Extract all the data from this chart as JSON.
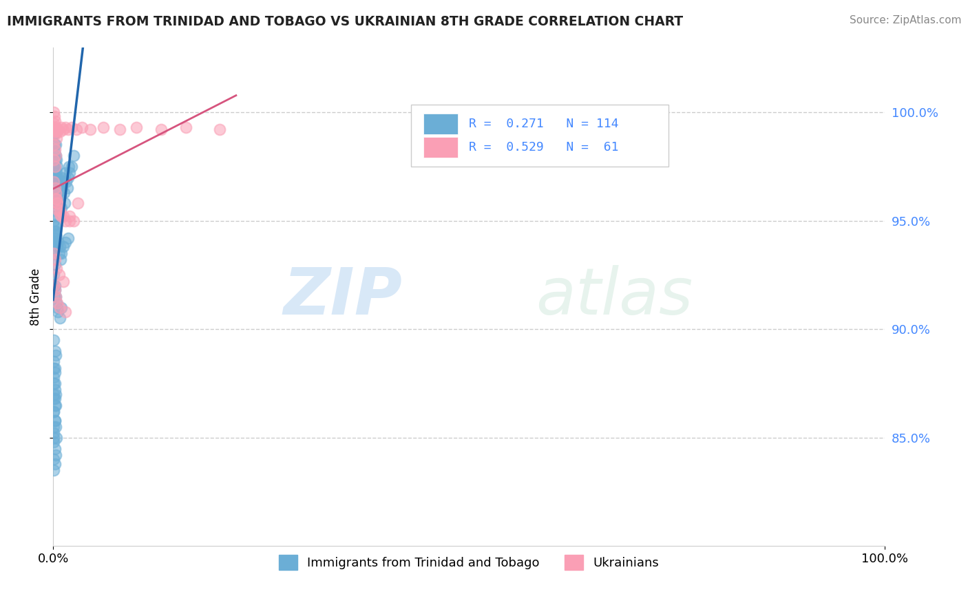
{
  "title": "IMMIGRANTS FROM TRINIDAD AND TOBAGO VS UKRAINIAN 8TH GRADE CORRELATION CHART",
  "source": "Source: ZipAtlas.com",
  "ylabel": "8th Grade",
  "xlim": [
    0.0,
    1.0
  ],
  "ylim": [
    0.8,
    1.03
  ],
  "yticks": [
    0.85,
    0.9,
    0.95,
    1.0
  ],
  "ytick_labels": [
    "85.0%",
    "90.0%",
    "95.0%",
    "100.0%"
  ],
  "blue_color": "#6baed6",
  "pink_color": "#fa9fb5",
  "blue_line_color": "#2166ac",
  "pink_line_color": "#d6547e",
  "watermark_zip": "ZIP",
  "watermark_atlas": "atlas",
  "blue_x": [
    0.0005,
    0.001,
    0.0015,
    0.001,
    0.0008,
    0.0012,
    0.0018,
    0.002,
    0.0022,
    0.0025,
    0.003,
    0.0032,
    0.0028,
    0.0035,
    0.004,
    0.0042,
    0.0038,
    0.005,
    0.0052,
    0.0048,
    0.006,
    0.0062,
    0.007,
    0.0072,
    0.008,
    0.009,
    0.0095,
    0.01,
    0.011,
    0.012,
    0.013,
    0.014,
    0.015,
    0.016,
    0.017,
    0.018,
    0.019,
    0.02,
    0.022,
    0.025,
    0.001,
    0.0015,
    0.002,
    0.0025,
    0.003,
    0.0035,
    0.004,
    0.005,
    0.006,
    0.007,
    0.008,
    0.009,
    0.01,
    0.012,
    0.015,
    0.018,
    0.001,
    0.0015,
    0.002,
    0.003,
    0.004,
    0.005,
    0.006,
    0.008,
    0.01,
    0.001,
    0.002,
    0.003,
    0.001,
    0.002,
    0.001,
    0.002,
    0.001,
    0.002,
    0.003,
    0.001,
    0.002,
    0.003,
    0.004,
    0.001,
    0.002,
    0.003,
    0.001,
    0.002,
    0.001,
    0.0008,
    0.0012,
    0.0016,
    0.002,
    0.0025,
    0.003,
    0.004,
    0.005,
    0.001,
    0.002,
    0.001,
    0.002,
    0.003,
    0.001,
    0.002,
    0.001,
    0.002,
    0.001,
    0.002,
    0.001,
    0.002,
    0.003,
    0.001,
    0.002,
    0.001,
    0.002,
    0.001,
    0.001,
    0.001
  ],
  "blue_y": [
    0.99,
    0.985,
    0.98,
    0.975,
    0.97,
    0.968,
    0.965,
    0.962,
    0.96,
    0.958,
    0.985,
    0.98,
    0.975,
    0.97,
    0.978,
    0.972,
    0.965,
    0.975,
    0.968,
    0.96,
    0.97,
    0.963,
    0.965,
    0.958,
    0.96,
    0.962,
    0.956,
    0.97,
    0.965,
    0.968,
    0.963,
    0.958,
    0.972,
    0.968,
    0.965,
    0.97,
    0.975,
    0.972,
    0.975,
    0.98,
    0.95,
    0.945,
    0.948,
    0.942,
    0.945,
    0.94,
    0.943,
    0.938,
    0.94,
    0.935,
    0.938,
    0.932,
    0.935,
    0.938,
    0.94,
    0.942,
    0.92,
    0.915,
    0.918,
    0.915,
    0.912,
    0.91,
    0.908,
    0.905,
    0.91,
    0.895,
    0.89,
    0.888,
    0.882,
    0.88,
    0.875,
    0.872,
    0.87,
    0.868,
    0.865,
    0.862,
    0.858,
    0.855,
    0.85,
    0.848,
    0.845,
    0.842,
    0.84,
    0.838,
    0.835,
    0.99,
    0.985,
    0.982,
    0.978,
    0.974,
    0.97,
    0.965,
    0.96,
    0.955,
    0.952,
    0.948,
    0.944,
    0.94,
    0.935,
    0.93,
    0.925,
    0.92,
    0.885,
    0.882,
    0.878,
    0.875,
    0.87,
    0.868,
    0.865,
    0.862,
    0.858,
    0.855,
    0.852,
    0.85
  ],
  "pink_x": [
    0.001,
    0.0015,
    0.002,
    0.001,
    0.0015,
    0.002,
    0.003,
    0.004,
    0.005,
    0.006,
    0.008,
    0.01,
    0.012,
    0.015,
    0.018,
    0.022,
    0.028,
    0.035,
    0.045,
    0.06,
    0.08,
    0.1,
    0.13,
    0.16,
    0.2,
    0.001,
    0.002,
    0.003,
    0.004,
    0.005,
    0.006,
    0.008,
    0.01,
    0.015,
    0.02,
    0.025,
    0.003,
    0.005,
    0.008,
    0.012,
    0.02,
    0.03,
    0.001,
    0.002,
    0.004,
    0.007,
    0.012,
    0.001,
    0.002,
    0.003,
    0.005,
    0.008,
    0.015,
    0.001,
    0.002,
    0.004,
    0.001,
    0.002,
    0.003,
    0.001,
    0.002
  ],
  "pink_y": [
    1.0,
    0.998,
    0.996,
    0.995,
    0.993,
    0.991,
    0.993,
    0.992,
    0.991,
    0.992,
    0.991,
    0.993,
    0.992,
    0.993,
    0.992,
    0.993,
    0.992,
    0.993,
    0.992,
    0.993,
    0.992,
    0.993,
    0.992,
    0.993,
    0.992,
    0.968,
    0.965,
    0.963,
    0.96,
    0.958,
    0.955,
    0.953,
    0.952,
    0.95,
    0.952,
    0.95,
    0.96,
    0.958,
    0.955,
    0.952,
    0.95,
    0.958,
    0.935,
    0.932,
    0.928,
    0.925,
    0.922,
    0.92,
    0.918,
    0.915,
    0.912,
    0.91,
    0.908,
    0.992,
    0.99,
    0.988,
    0.985,
    0.983,
    0.98,
    0.978,
    0.975
  ]
}
